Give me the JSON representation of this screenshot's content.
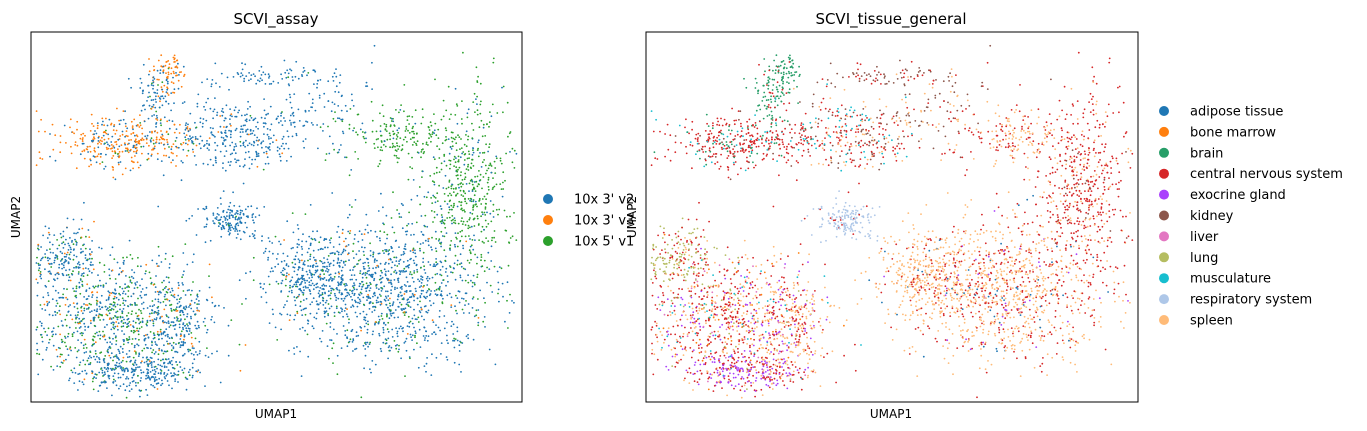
{
  "chart_data": [
    {
      "type": "scatter",
      "title": "SCVI_assay",
      "xlabel": "UMAP1",
      "ylabel": "UMAP2",
      "grid": false,
      "ticks": false,
      "legend_position": "right",
      "legend": [
        {
          "label": "10x 3' v2",
          "color": "#1f77b4"
        },
        {
          "label": "10x 3' v3",
          "color": "#ff7f0e"
        },
        {
          "label": "10x 5' v1",
          "color": "#2ca02c"
        }
      ]
    },
    {
      "type": "scatter",
      "title": "SCVI_tissue_general",
      "xlabel": "UMAP1",
      "ylabel": "UMAP2",
      "grid": false,
      "ticks": false,
      "legend_position": "right",
      "legend": [
        {
          "label": "adipose tissue",
          "color": "#1f77b4"
        },
        {
          "label": "bone marrow",
          "color": "#ff7f0e"
        },
        {
          "label": "brain",
          "color": "#279e68"
        },
        {
          "label": "central nervous system",
          "color": "#d62728"
        },
        {
          "label": "exocrine gland",
          "color": "#aa40fc"
        },
        {
          "label": "kidney",
          "color": "#8c564b"
        },
        {
          "label": "liver",
          "color": "#e377c2"
        },
        {
          "label": "lung",
          "color": "#b5bd61"
        },
        {
          "label": "musculature",
          "color": "#17becf"
        },
        {
          "label": "respiratory system",
          "color": "#aec7e8"
        },
        {
          "label": "spleen",
          "color": "#ffbb78"
        }
      ]
    }
  ]
}
